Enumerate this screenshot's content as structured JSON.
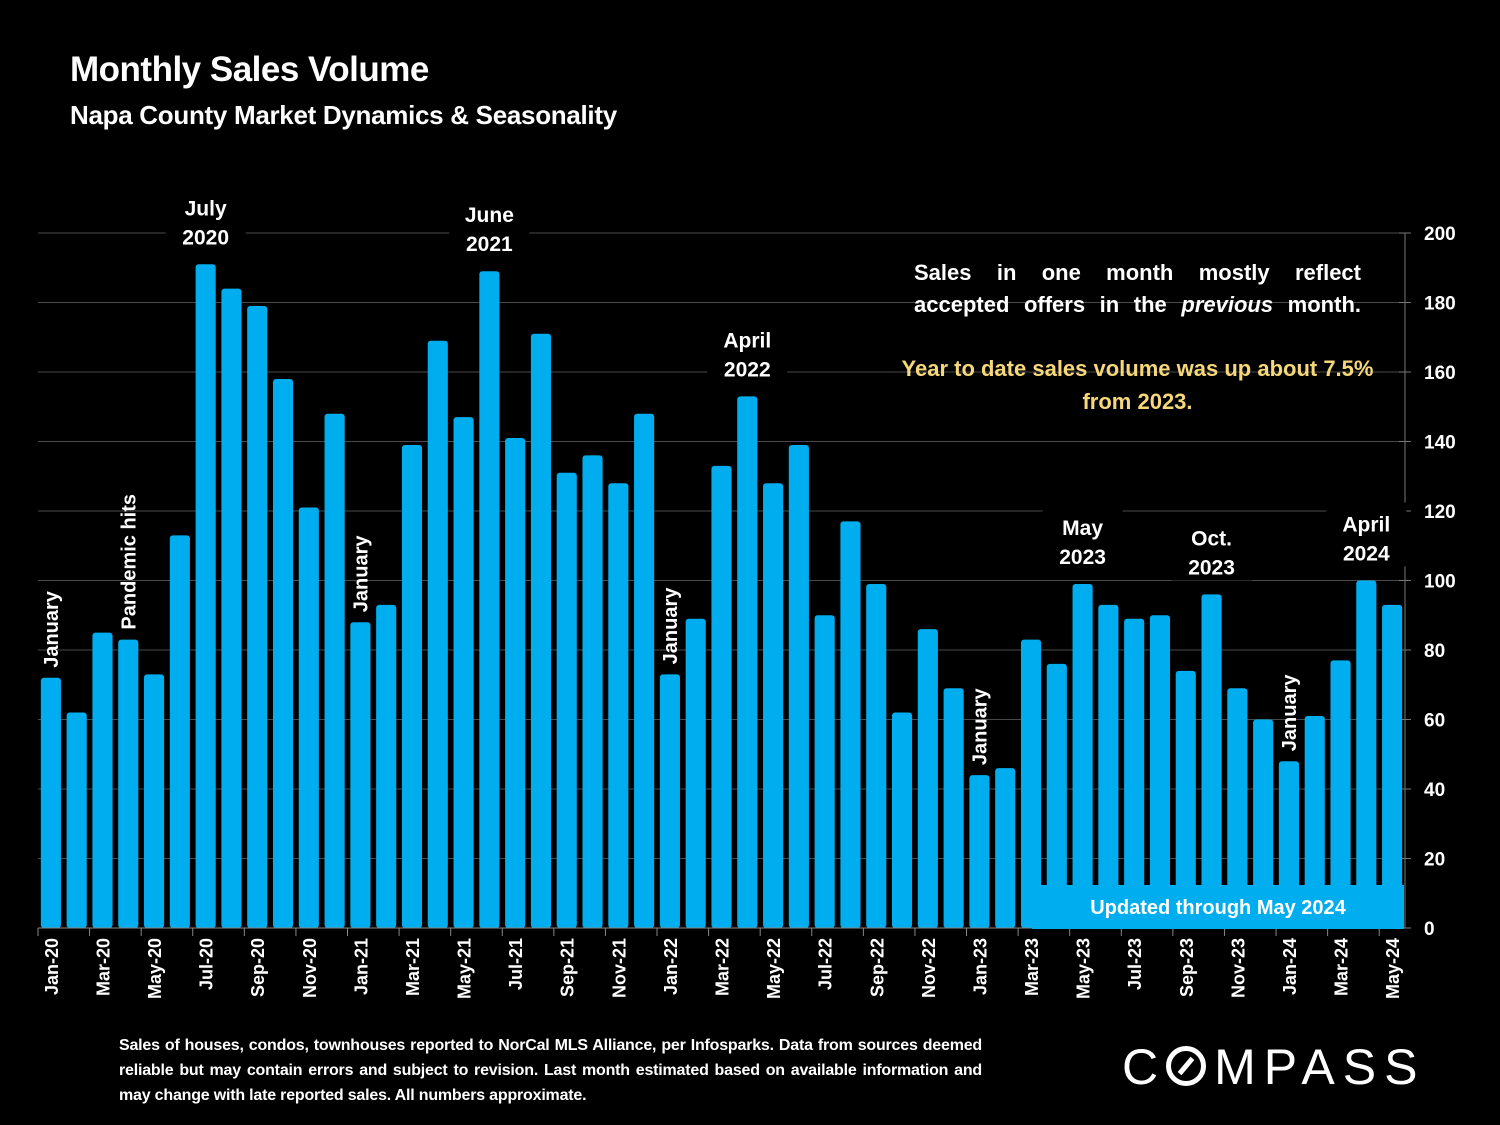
{
  "header": {
    "title": "Monthly Sales Volume",
    "subtitle": "Napa County Market Dynamics & Seasonality"
  },
  "notes": {
    "line1_a": "Sales in one month mostly reflect accepted offers in the ",
    "line1_em": "previous",
    "line1_b": " month.",
    "line2": "Year to date sales volume was up about 7.5% from 2023."
  },
  "updated_label": "Updated through May 2024",
  "footer": "Sales of houses, condos, townhouses reported to NorCal MLS Alliance, per Infosparks. Data from sources deemed reliable but may contain errors and subject to revision. Last month estimated based on available information and may change with late reported sales. All numbers approximate.",
  "logo": {
    "pre": "C",
    "post": "MPASS"
  },
  "colors": {
    "bar": "#00aeef",
    "highlight_text": "#f6d87a",
    "background": "#000000"
  },
  "chart_data": {
    "type": "bar",
    "title": "Monthly Sales Volume",
    "subtitle": "Napa County Market Dynamics & Seasonality",
    "xlabel": "",
    "ylabel": "",
    "ylim": [
      0,
      200
    ],
    "yticks": [
      0,
      20,
      40,
      60,
      80,
      100,
      120,
      140,
      160,
      180,
      200
    ],
    "y_axis_side": "right",
    "grid": true,
    "categories": [
      "Jan-20",
      "Feb-20",
      "Mar-20",
      "Apr-20",
      "May-20",
      "Jun-20",
      "Jul-20",
      "Aug-20",
      "Sep-20",
      "Oct-20",
      "Nov-20",
      "Dec-20",
      "Jan-21",
      "Feb-21",
      "Mar-21",
      "Apr-21",
      "May-21",
      "Jun-21",
      "Jul-21",
      "Aug-21",
      "Sep-21",
      "Oct-21",
      "Nov-21",
      "Dec-21",
      "Jan-22",
      "Feb-22",
      "Mar-22",
      "Apr-22",
      "May-22",
      "Jun-22",
      "Jul-22",
      "Aug-22",
      "Sep-22",
      "Oct-22",
      "Nov-22",
      "Dec-22",
      "Jan-23",
      "Feb-23",
      "Mar-23",
      "Apr-23",
      "May-23",
      "Jun-23",
      "Jul-23",
      "Aug-23",
      "Sep-23",
      "Oct-23",
      "Nov-23",
      "Dec-23",
      "Jan-24",
      "Feb-24",
      "Mar-24",
      "Apr-24",
      "May-24"
    ],
    "values": [
      72,
      62,
      85,
      83,
      73,
      113,
      191,
      184,
      179,
      158,
      121,
      148,
      88,
      93,
      139,
      169,
      147,
      189,
      141,
      171,
      131,
      136,
      128,
      148,
      73,
      89,
      133,
      153,
      128,
      139,
      90,
      117,
      99,
      62,
      86,
      69,
      44,
      46,
      83,
      76,
      99,
      93,
      89,
      90,
      74,
      96,
      69,
      60,
      48,
      61,
      77,
      100,
      93
    ],
    "x_tick_labels_shown_every": 2,
    "annotations": [
      {
        "index": 0,
        "text": "January",
        "style": "vertical"
      },
      {
        "index": 3,
        "text": "Pandemic hits",
        "style": "vertical"
      },
      {
        "index": 6,
        "text": "July\n2020",
        "style": "horizontal"
      },
      {
        "index": 12,
        "text": "January",
        "style": "vertical"
      },
      {
        "index": 17,
        "text": "June\n2021",
        "style": "horizontal"
      },
      {
        "index": 24,
        "text": "January",
        "style": "vertical"
      },
      {
        "index": 27,
        "text": "April\n2022",
        "style": "horizontal"
      },
      {
        "index": 36,
        "text": "January",
        "style": "vertical"
      },
      {
        "index": 40,
        "text": "May\n2023",
        "style": "horizontal"
      },
      {
        "index": 45,
        "text": "Oct.\n2023",
        "style": "horizontal"
      },
      {
        "index": 48,
        "text": "January",
        "style": "vertical"
      },
      {
        "index": 51,
        "text": "April\n2024",
        "style": "horizontal"
      }
    ]
  }
}
